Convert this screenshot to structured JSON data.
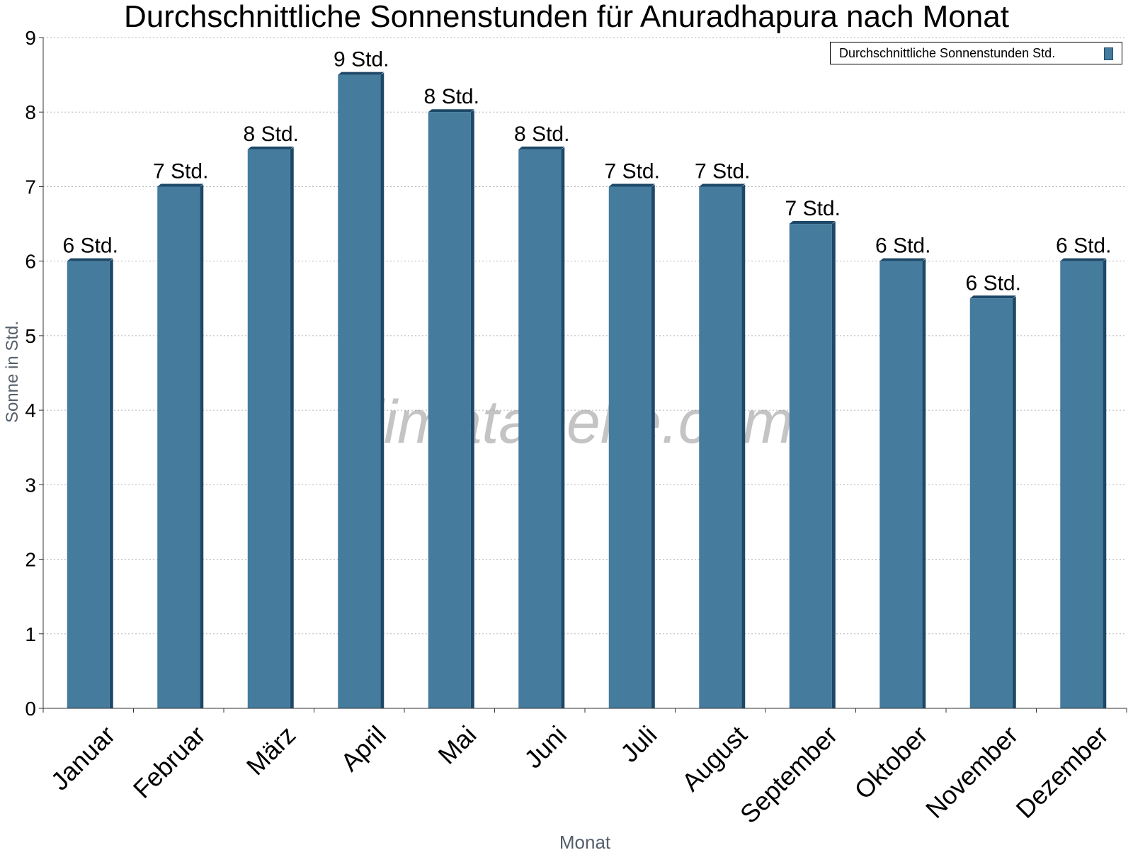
{
  "chart_data": {
    "type": "bar",
    "title": "Durchschnittliche Sonnenstunden für Anuradhapura nach Monat",
    "xlabel": "Monat",
    "ylabel": "Sonne in Std.",
    "ylim": [
      0,
      9
    ],
    "yticks": [
      0,
      1,
      2,
      3,
      4,
      5,
      6,
      7,
      8,
      9
    ],
    "grid": true,
    "legend_position": "top-right",
    "watermark": "klimatabelle.com",
    "categories": [
      "Januar",
      "Februar",
      "März",
      "April",
      "Mai",
      "Juni",
      "Juli",
      "August",
      "September",
      "Oktober",
      "November",
      "Dezember"
    ],
    "series": [
      {
        "name": "Durchschnittliche Sonnenstunden Std.",
        "color": "#457b9d",
        "values": [
          6.0,
          7.0,
          7.5,
          8.5,
          8.0,
          7.5,
          7.0,
          7.0,
          6.5,
          6.0,
          5.5,
          6.0
        ],
        "data_labels": [
          "6 Std.",
          "7 Std.",
          "8 Std.",
          "9 Std.",
          "8 Std.",
          "8 Std.",
          "7 Std.",
          "7 Std.",
          "7 Std.",
          "6 Std.",
          "6 Std.",
          "6 Std."
        ]
      }
    ]
  }
}
